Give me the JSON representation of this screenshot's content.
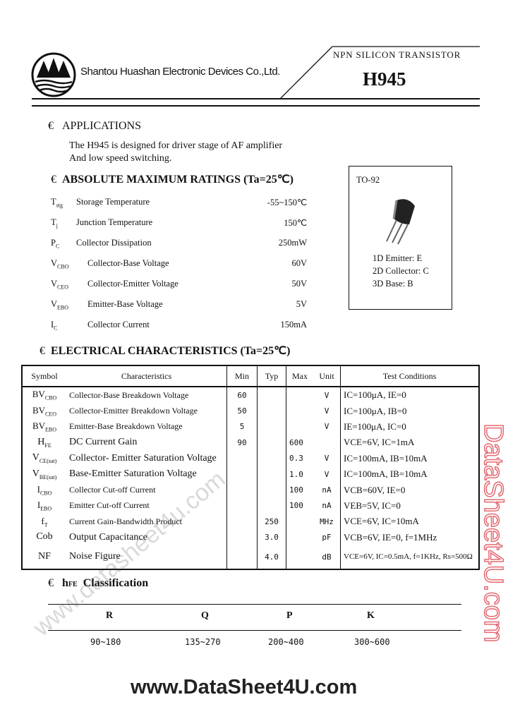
{
  "header": {
    "company": "Shantou Huashan Electronic Devices Co.,Ltd.",
    "type": "NPN SILICON TRANSISTOR",
    "part": "H945"
  },
  "applications": {
    "bullet": "€",
    "title": "APPLICATIONS",
    "lines": [
      "The H945 is designed for driver stage of AF amplifier",
      "And low speed switching."
    ]
  },
  "ratings": {
    "bullet": "€",
    "title": "ABSOLUTE MAXIMUM RATINGS",
    "cond": "(Ta=25℃)",
    "items": [
      {
        "sym": "T",
        "sub": "stg",
        "label": "Storage Temperature",
        "value": "-55~150℃"
      },
      {
        "sym": "T",
        "sub": "j",
        "label": "Junction Temperature",
        "value": "150℃"
      },
      {
        "sym": "P",
        "sub": "C",
        "label": "Collector Dissipation",
        "value": "250mW"
      },
      {
        "sym": "V",
        "sub": "CBO",
        "label": "Collector-Base Voltage",
        "value": "60V"
      },
      {
        "sym": "V",
        "sub": "CEO",
        "label": "Collector-Emitter Voltage",
        "value": "50V"
      },
      {
        "sym": "V",
        "sub": "EBO",
        "label": "Emitter-Base Voltage",
        "value": "5V"
      },
      {
        "sym": "I",
        "sub": "C",
        "label": "Collector Current",
        "value": "150mA"
      }
    ]
  },
  "package": {
    "name": "TO-92",
    "pins": [
      "1D Emitter: E",
      "2D Collector: C",
      "3D Base: B"
    ]
  },
  "electrical": {
    "bullet": "€",
    "title": "ELECTRICAL CHARACTERISTICS",
    "cond": "(Ta=25℃)",
    "headers": [
      "Symbol",
      "Characteristics",
      "Min",
      "Typ",
      "Max",
      "Unit",
      "Test Conditions"
    ],
    "rows": [
      {
        "sym": "BV",
        "sub": "CBO",
        "name": "Collector-Base Breakdown Voltage",
        "min": "60",
        "typ": "",
        "max": "",
        "unit": "V",
        "cond": "IC=100μA, IE=0"
      },
      {
        "sym": "BV",
        "sub": "CEO",
        "name": "Collector-Emitter Breakdown Voltage",
        "min": "50",
        "typ": "",
        "max": "",
        "unit": "V",
        "cond": "IC=100μA, IB=0"
      },
      {
        "sym": "BV",
        "sub": "EBO",
        "name": "Emitter-Base Breakdown Voltage",
        "min": "5",
        "typ": "",
        "max": "",
        "unit": "V",
        "cond": "IE=100μA, IC=0"
      },
      {
        "sym": "H",
        "sub": "FE",
        "name": "DC Current Gain",
        "min": "90",
        "typ": "",
        "max": "600",
        "unit": "",
        "cond": "VCE=6V, IC=1mA"
      },
      {
        "sym": "V",
        "sub": "CE(sat)",
        "name": "Collector- Emitter Saturation Voltage",
        "min": "",
        "typ": "",
        "max": "0.3",
        "unit": "V",
        "cond": "IC=100mA, IB=10mA"
      },
      {
        "sym": "V",
        "sub": "BE(sat)",
        "name": "Base-Emitter Saturation Voltage",
        "min": "",
        "typ": "",
        "max": "1.0",
        "unit": "V",
        "cond": "IC=100mA, IB=10mA"
      },
      {
        "sym": "I",
        "sub": "CBO",
        "name": "Collector Cut-off Current",
        "min": "",
        "typ": "",
        "max": "100",
        "unit": "nA",
        "cond": "VCB=60V, IE=0"
      },
      {
        "sym": "I",
        "sub": "EBO",
        "name": "Emitter Cut-off Current",
        "min": "",
        "typ": "",
        "max": "100",
        "unit": "nA",
        "cond": "VEB=5V, IC=0"
      },
      {
        "sym": "f",
        "sub": "T",
        "name": "Current Gain-Bandwidth Product",
        "min": "",
        "typ": "250",
        "max": "",
        "unit": "MHz",
        "cond": "VCE=6V, IC=10mA"
      },
      {
        "sym": "Cob",
        "sub": "",
        "name": "Output Capacitance",
        "min": "",
        "typ": "3.0",
        "max": "",
        "unit": "pF",
        "cond": "VCB=6V, IE=0, f=1MHz"
      },
      {
        "sym": "NF",
        "sub": "",
        "name": "Noise Figure",
        "min": "",
        "typ": "4.0",
        "max": "",
        "unit": "dB",
        "cond": "VCE=6V, IC=0.5mA, f=1KHz, Rs=500Ω"
      }
    ]
  },
  "classification": {
    "bullet": "€",
    "sym": "h",
    "sub": "FE",
    "title": "Classification",
    "ranks": [
      "R",
      "Q",
      "P",
      "K"
    ],
    "ranges": [
      "90~180",
      "135~270",
      "200~400",
      "300~600"
    ]
  },
  "watermarks": {
    "bottom": "www.DataSheet4U.com",
    "side": "DataSheet4U.com",
    "diagonal": "www.datasheet4u.com"
  }
}
